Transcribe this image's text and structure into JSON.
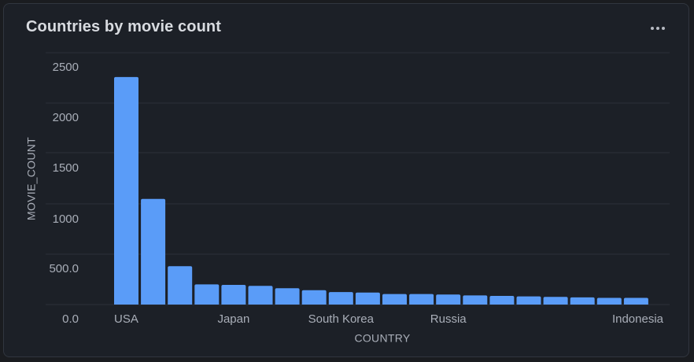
{
  "card": {
    "title": "Countries by movie count",
    "menu_icon": "more-horizontal-icon"
  },
  "colors": {
    "bar": "#5a9cf8",
    "grid": "#2c3038",
    "text": "#a9aeb8"
  },
  "chart_data": {
    "type": "bar",
    "title": "Countries by movie count",
    "xlabel": "COUNTRY",
    "ylabel": "MOVIE_COUNT",
    "ylim": [
      0,
      2500
    ],
    "y_ticks": [
      "0.0",
      "500.0",
      "1000",
      "1500",
      "2000",
      "2500"
    ],
    "y_tick_values": [
      0,
      500,
      1000,
      1500,
      2000,
      2500
    ],
    "grid": true,
    "visible_category_labels": {
      "0": "USA",
      "4": "Japan",
      "8": "South Korea",
      "12": "Russia",
      "19": "Indonesia"
    },
    "values": [
      2370,
      1100,
      400,
      210,
      205,
      195,
      170,
      150,
      130,
      125,
      110,
      110,
      105,
      95,
      90,
      85,
      80,
      75,
      70,
      70
    ]
  }
}
